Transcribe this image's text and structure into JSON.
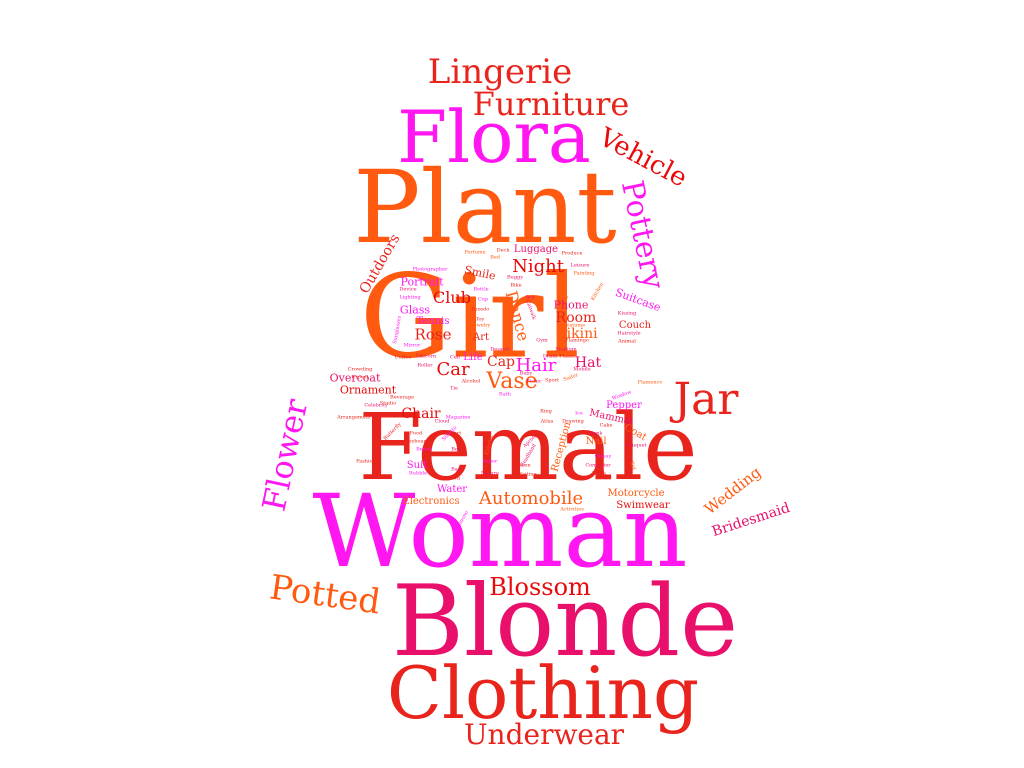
{
  "palette": {
    "magenta": "#ff16f0",
    "orange": "#ff5a10",
    "red": "#e8241c",
    "crimson": "#e8106a",
    "scarlet": "#e80a0a"
  },
  "words": [
    {
      "text": "Plant",
      "color": "#ff5a10"
    },
    {
      "text": "Girl",
      "color": "#ff5a10"
    },
    {
      "text": "Female",
      "color": "#e8241c"
    },
    {
      "text": "Woman",
      "color": "#ff16f0"
    },
    {
      "text": "Blonde",
      "color": "#e8106a"
    },
    {
      "text": "Clothing",
      "color": "#e8241c"
    },
    {
      "text": "Flora",
      "color": "#ff16f0"
    },
    {
      "text": "Jar",
      "color": "#e8241c"
    },
    {
      "text": "Lingerie",
      "color": "#e8241c"
    },
    {
      "text": "Furniture",
      "color": "#e8241c"
    },
    {
      "text": "Underwear",
      "color": "#e8241c"
    },
    {
      "text": "Potted",
      "color": "#ff5a10"
    },
    {
      "text": "Flower",
      "color": "#ff16f0"
    },
    {
      "text": "Pottery",
      "color": "#ff16f0"
    },
    {
      "text": "Vehicle",
      "color": "#e80a0a"
    },
    {
      "text": "Blossom",
      "color": "#e80a0a"
    },
    {
      "text": "Automobile",
      "color": "#ff5a10"
    },
    {
      "text": "Vase",
      "color": "#ff5a10"
    },
    {
      "text": "Night",
      "color": "#e80a0a"
    },
    {
      "text": "Hair",
      "color": "#ff16f0"
    },
    {
      "text": "Car",
      "color": "#e80a0a"
    },
    {
      "text": "Club",
      "color": "#e80a0a"
    },
    {
      "text": "Dance",
      "color": "#ff5a10"
    },
    {
      "text": "Rose",
      "color": "#e8241c"
    },
    {
      "text": "Chair",
      "color": "#e80a0a"
    },
    {
      "text": "Wedding",
      "color": "#ff5a10"
    },
    {
      "text": "Bridesmaid",
      "color": "#e8106a"
    },
    {
      "text": "Outdoors",
      "color": "#e8241c"
    },
    {
      "text": "Room",
      "color": "#e8241c"
    },
    {
      "text": "Bikini",
      "color": "#ff5a10"
    },
    {
      "text": "Hat",
      "color": "#e8106a"
    },
    {
      "text": "Cap",
      "color": "#e8241c"
    },
    {
      "text": "Luggage",
      "color": "#e8106a"
    },
    {
      "text": "Phone",
      "color": "#e8106a"
    },
    {
      "text": "Suitcase",
      "color": "#ff16f0"
    },
    {
      "text": "Couch",
      "color": "#e8241c"
    },
    {
      "text": "Portrait",
      "color": "#ff16f0"
    },
    {
      "text": "Glass",
      "color": "#ff16f0"
    },
    {
      "text": "Tennis",
      "color": "#ff16f0"
    },
    {
      "text": "Smile",
      "color": "#e8241c"
    },
    {
      "text": "Art",
      "color": "#e8241c"
    },
    {
      "text": "Life",
      "color": "#ff16f0"
    },
    {
      "text": "Overcoat",
      "color": "#e8106a"
    },
    {
      "text": "Ornament",
      "color": "#e80a0a"
    },
    {
      "text": "Pepper",
      "color": "#ff16f0"
    },
    {
      "text": "Mammal",
      "color": "#e8106a"
    },
    {
      "text": "Coat",
      "color": "#ff5a10"
    },
    {
      "text": "Nail",
      "color": "#ff5a10"
    },
    {
      "text": "Reception",
      "color": "#ff5a10"
    },
    {
      "text": "Suit",
      "color": "#ff16f0"
    },
    {
      "text": "Water",
      "color": "#ff16f0"
    },
    {
      "text": "Electronics",
      "color": "#ff5a10"
    },
    {
      "text": "Motorcycle",
      "color": "#ff5a10"
    },
    {
      "text": "Swimwear",
      "color": "#e80a0a"
    },
    {
      "text": "Arrangement",
      "color": "#e8241c"
    },
    {
      "text": "Photographer",
      "color": "#ff16f0"
    },
    {
      "text": "Device",
      "color": "#e8106a"
    },
    {
      "text": "Perfume",
      "color": "#ff5a10"
    },
    {
      "text": "Produce",
      "color": "#e8241c"
    },
    {
      "text": "Leisure",
      "color": "#e8106a"
    },
    {
      "text": "Painting",
      "color": "#ff5a10"
    },
    {
      "text": "Kiss",
      "color": "#ff5a10"
    },
    {
      "text": "Kissing",
      "color": "#e8106a"
    },
    {
      "text": "Animal",
      "color": "#e8241c"
    },
    {
      "text": "Hairstyle",
      "color": "#e8106a"
    },
    {
      "text": "Alcohol",
      "color": "#e8241c"
    },
    {
      "text": "Sport",
      "color": "#e8241c"
    },
    {
      "text": "Mobile",
      "color": "#e8106a"
    },
    {
      "text": "Drink",
      "color": "#e8106a"
    },
    {
      "text": "Flame",
      "color": "#e8241c"
    },
    {
      "text": "Beverage",
      "color": "#e8241c"
    },
    {
      "text": "Crowd",
      "color": "#e8241c"
    },
    {
      "text": "Crowding",
      "color": "#e8241c"
    },
    {
      "text": "Magazine",
      "color": "#ff16f0"
    },
    {
      "text": "Cell",
      "color": "#e8106a"
    },
    {
      "text": "Roller",
      "color": "#e8106a"
    },
    {
      "text": "Stiletto",
      "color": "#ff16f0"
    },
    {
      "text": "Window",
      "color": "#ff16f0"
    },
    {
      "text": "Flamenco",
      "color": "#ff5a10"
    },
    {
      "text": "Atlas",
      "color": "#e8241c"
    },
    {
      "text": "Ice",
      "color": "#ff16f0"
    },
    {
      "text": "Bank",
      "color": "#e8106a"
    },
    {
      "text": "Bouquet",
      "color": "#e8106a"
    },
    {
      "text": "Glassy",
      "color": "#ff16f0"
    },
    {
      "text": "Computer",
      "color": "#e8106a"
    },
    {
      "text": "Block",
      "color": "#e8241c"
    },
    {
      "text": "Activities",
      "color": "#ff5a10"
    },
    {
      "text": "Oven",
      "color": "#e8241c"
    },
    {
      "text": "Waiting",
      "color": "#e8241c"
    },
    {
      "text": "Paper",
      "color": "#ff16f0"
    },
    {
      "text": "Nature",
      "color": "#e8106a"
    },
    {
      "text": "Gown",
      "color": "#e8241c"
    },
    {
      "text": "Bag",
      "color": "#e8106a"
    },
    {
      "text": "Box",
      "color": "#e8106a"
    },
    {
      "text": "Court",
      "color": "#e8241c"
    },
    {
      "text": "Cloud",
      "color": "#e8106a"
    },
    {
      "text": "Food",
      "color": "#e8241c"
    },
    {
      "text": "Keyboard",
      "color": "#e8241c"
    },
    {
      "text": "Tuxedo",
      "color": "#e8241c"
    },
    {
      "text": "Buggy",
      "color": "#e8106a"
    },
    {
      "text": "Bike",
      "color": "#e8241c"
    },
    {
      "text": "Toy",
      "color": "#e8241c"
    },
    {
      "text": "Jewelry",
      "color": "#ff5a10"
    },
    {
      "text": "Sunglasses",
      "color": "#ff16f0"
    },
    {
      "text": "Unicorn",
      "color": "#e8106a"
    },
    {
      "text": "Sailor",
      "color": "#ff5a10"
    },
    {
      "text": "Fashion",
      "color": "#e8241c"
    },
    {
      "text": "Rubble",
      "color": "#ff16f0"
    },
    {
      "text": "Exterior",
      "color": "#ff5a10"
    },
    {
      "text": "Kimono",
      "color": "#ff16f0"
    },
    {
      "text": "Apron",
      "color": "#e8106a"
    },
    {
      "text": "Headband",
      "color": "#e8106a"
    },
    {
      "text": "Deck",
      "color": "#e8241c"
    },
    {
      "text": "Lighting",
      "color": "#ff16f0"
    },
    {
      "text": "Butterfly",
      "color": "#e8241c"
    },
    {
      "text": "Kitchen",
      "color": "#ff5a10"
    },
    {
      "text": "Catwalk",
      "color": "#e8106a"
    },
    {
      "text": "Baby",
      "color": "#e8106a"
    },
    {
      "text": "Picnic",
      "color": "#e8106a"
    },
    {
      "text": "Ring",
      "color": "#e8241c"
    },
    {
      "text": "Stadium",
      "color": "#e8106a"
    },
    {
      "text": "Flamingo",
      "color": "#e8241c"
    },
    {
      "text": "Costume",
      "color": "#ff5a10"
    },
    {
      "text": "Bra",
      "color": "#e8106a"
    },
    {
      "text": "Cup",
      "color": "#ff16f0"
    },
    {
      "text": "Bottle",
      "color": "#ff16f0"
    },
    {
      "text": "Gym",
      "color": "#e8106a"
    },
    {
      "text": "Kid",
      "color": "#ff5a10"
    },
    {
      "text": "Mirror",
      "color": "#ff16f0"
    },
    {
      "text": "Dessert",
      "color": "#e8106a"
    },
    {
      "text": "Cake",
      "color": "#e8241c"
    },
    {
      "text": "Drawing",
      "color": "#e8241c"
    },
    {
      "text": "Bench",
      "color": "#ff16f0"
    },
    {
      "text": "Celebrity",
      "color": "#e8106a"
    },
    {
      "text": "Studio",
      "color": "#e8241c"
    },
    {
      "text": "Bath",
      "color": "#ff16f0"
    },
    {
      "text": "Tie",
      "color": "#e8106a"
    },
    {
      "text": "Bed",
      "color": "#ff5a10"
    },
    {
      "text": "Coffee",
      "color": "#e8241c"
    }
  ]
}
